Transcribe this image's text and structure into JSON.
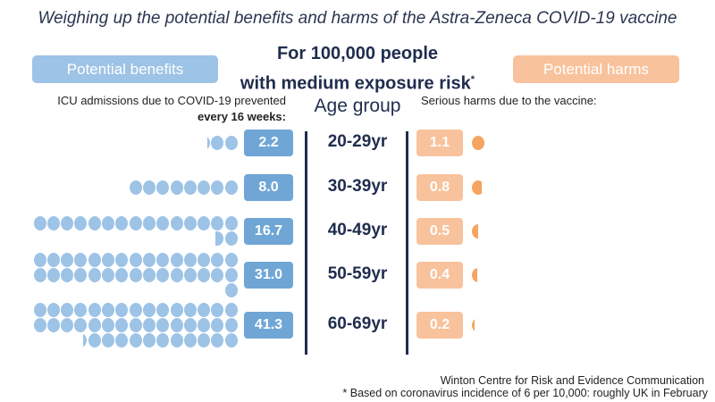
{
  "title": "Weighing up the potential benefits and harms of the Astra-Zeneca COVID-19 vaccine",
  "subtitle_line1": "For 100,000 people",
  "subtitle_line2": "with medium exposure risk",
  "subtitle_asterisk": "*",
  "benefits_label": "Potential benefits",
  "harms_label": "Potential harms",
  "benefits_description_line1": "ICU admissions due to COVID-19 prevented",
  "benefits_description_line2": "every 16 weeks:",
  "harms_description": "Serious harms due to the vaccine:",
  "age_header": "Age group",
  "credit": "Winton Centre for Risk and Evidence Communication",
  "footnote": "* Based on coronavirus incidence of 6 per 10,000: roughly UK in February",
  "colors": {
    "benefit_dot": "#9dc3e6",
    "benefit_box": "#6fa6d6",
    "harm_dot": "#f5a461",
    "harm_box": "#f8c29c",
    "text_dark": "#1f2d4d"
  },
  "chart_data": {
    "type": "bar",
    "title": "Weighing up the potential benefits and harms of the Astra-Zeneca COVID-19 vaccine",
    "subtitle": "For 100,000 people with medium exposure risk*",
    "xlabel": "",
    "ylabel": "Age group",
    "categories": [
      "20-29yr",
      "30-39yr",
      "40-49yr",
      "50-59yr",
      "60-69yr"
    ],
    "series": [
      {
        "name": "ICU admissions due to COVID-19 prevented every 16 weeks",
        "side": "left",
        "values": [
          2.2,
          8.0,
          16.7,
          31.0,
          41.3
        ],
        "labels": [
          "2.2",
          "8.0",
          "16.7",
          "31.0",
          "41.3"
        ]
      },
      {
        "name": "Serious harms due to the vaccine",
        "side": "right",
        "values": [
          1.1,
          0.8,
          0.5,
          0.4,
          0.2
        ],
        "labels": [
          "1.1",
          "0.8",
          "0.5",
          "0.4",
          "0.2"
        ]
      }
    ],
    "unit": "per 100,000 people (one dot = 1 person)",
    "dots_per_row": 15,
    "legend": [
      "Potential benefits",
      "Potential harms"
    ]
  }
}
